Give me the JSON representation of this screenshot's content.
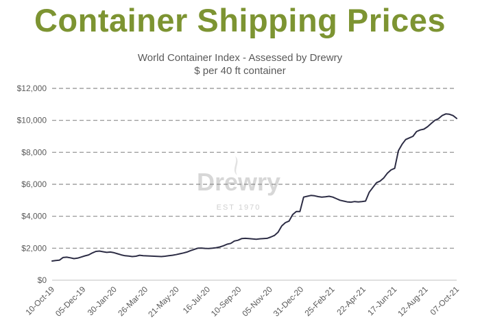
{
  "page": {
    "headline": "Container Shipping Prices"
  },
  "colors": {
    "headline": "#7d9432",
    "line": "#2c2c44",
    "grid": "#8c8c8c",
    "text": "#595959",
    "watermark": "#d7d7d7"
  },
  "watermark": {
    "name": "Drewry",
    "est": "EST 1970"
  },
  "chart_data": {
    "type": "line",
    "title": "World Container Index - Assessed by Drewry",
    "subtitle": "$ per 40 ft container",
    "xlabel": "",
    "ylabel": "",
    "ylim": [
      0,
      12000
    ],
    "grid": true,
    "y_ticks": [
      "$0",
      "$2,000",
      "$4,000",
      "$6,000",
      "$8,000",
      "$10,000",
      "$12,000"
    ],
    "y_tick_values": [
      0,
      2000,
      4000,
      6000,
      8000,
      10000,
      12000
    ],
    "x_ticks": [
      "10-Oct-19",
      "05-Dec-19",
      "30-Jan-20",
      "26-Mar-20",
      "21-May-20",
      "16-Jul-20",
      "10-Sep-20",
      "05-Nov-20",
      "31-Dec-20",
      "25-Feb-21",
      "22-Apr-21",
      "17-Jun-21",
      "12-Aug-21",
      "07-Oct-21"
    ],
    "series": [
      {
        "values": [
          1200,
          1230,
          1250,
          1420,
          1440,
          1400,
          1350,
          1380,
          1450,
          1520,
          1580,
          1700,
          1800,
          1820,
          1780,
          1740,
          1760,
          1720,
          1650,
          1580,
          1530,
          1510,
          1480,
          1500,
          1560,
          1530,
          1520,
          1510,
          1500,
          1490,
          1480,
          1500,
          1530,
          1560,
          1600,
          1650,
          1700,
          1760,
          1850,
          1930,
          2000,
          2010,
          1990,
          1980,
          2000,
          2030,
          2080,
          2150,
          2250,
          2300,
          2450,
          2500,
          2600,
          2620,
          2600,
          2580,
          2560,
          2590,
          2600,
          2620,
          2700,
          2800,
          3000,
          3400,
          3600,
          3700,
          4100,
          4300,
          4300,
          5200,
          5250,
          5300,
          5280,
          5230,
          5200,
          5220,
          5250,
          5200,
          5100,
          5000,
          4950,
          4900,
          4880,
          4920,
          4900,
          4920,
          4950,
          5500,
          5800,
          6100,
          6200,
          6400,
          6700,
          6900,
          7000,
          8100,
          8500,
          8800,
          8900,
          9000,
          9300,
          9400,
          9450,
          9600,
          9800,
          10000,
          10100,
          10300,
          10400,
          10380,
          10300,
          10120
        ]
      }
    ]
  }
}
